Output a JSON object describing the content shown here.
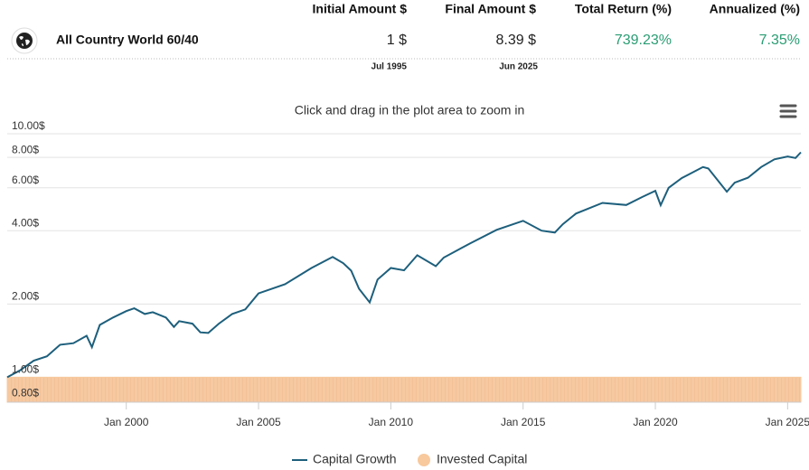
{
  "summary": {
    "headers": [
      "Initial Amount $",
      "Final Amount $",
      "Total Return (%)",
      "Annualized (%)"
    ],
    "portfolio": "All Country World 60/40",
    "initial_amount": "1 $",
    "final_amount": "8.39 $",
    "total_return": "739.23%",
    "annualized": "7.35%",
    "start_date": "Jul 1995",
    "end_date": "Jun 2025"
  },
  "chart_data": {
    "type": "line",
    "subtitle": "Click and drag in the plot area to zoom in",
    "log_scale": true,
    "grid": true,
    "legend": "bottom",
    "x": [
      1995.5,
      1996.0,
      1996.5,
      1997.0,
      1997.5,
      1998.0,
      1998.5,
      1998.7,
      1999.0,
      1999.5,
      2000.0,
      2000.3,
      2000.7,
      2001.0,
      2001.5,
      2001.8,
      2002.0,
      2002.5,
      2002.8,
      2003.1,
      2003.5,
      2004.0,
      2004.5,
      2005.0,
      2006.0,
      2007.0,
      2007.8,
      2008.2,
      2008.5,
      2008.8,
      2009.2,
      2009.5,
      2010.0,
      2010.5,
      2011.0,
      2011.7,
      2012.0,
      2013.0,
      2014.0,
      2015.0,
      2015.7,
      2016.2,
      2016.5,
      2017.0,
      2018.0,
      2018.9,
      2019.5,
      2020.0,
      2020.2,
      2020.5,
      2021.0,
      2021.8,
      2022.0,
      2022.7,
      2023.0,
      2023.5,
      2024.0,
      2024.5,
      2025.0,
      2025.3,
      2025.5
    ],
    "series": [
      {
        "name": "Capital Growth",
        "color": "#1d5f7c",
        "values": [
          1.0,
          1.07,
          1.17,
          1.22,
          1.36,
          1.38,
          1.48,
          1.33,
          1.64,
          1.76,
          1.87,
          1.92,
          1.82,
          1.85,
          1.76,
          1.61,
          1.7,
          1.66,
          1.53,
          1.52,
          1.66,
          1.82,
          1.9,
          2.21,
          2.41,
          2.81,
          3.12,
          2.94,
          2.74,
          2.31,
          2.03,
          2.52,
          2.81,
          2.75,
          3.17,
          2.86,
          3.1,
          3.55,
          4.03,
          4.39,
          4.0,
          3.93,
          4.25,
          4.7,
          5.2,
          5.1,
          5.5,
          5.83,
          5.09,
          6.0,
          6.58,
          7.3,
          7.2,
          5.78,
          6.3,
          6.6,
          7.3,
          7.85,
          8.07,
          7.95,
          8.39
        ]
      },
      {
        "name": "Invested Capital",
        "color": "#f8c99d",
        "values": [
          1,
          1,
          1,
          1,
          1,
          1,
          1,
          1,
          1,
          1,
          1,
          1,
          1,
          1,
          1,
          1,
          1,
          1,
          1,
          1,
          1,
          1,
          1,
          1,
          1,
          1,
          1,
          1,
          1,
          1,
          1,
          1,
          1,
          1,
          1,
          1,
          1,
          1,
          1,
          1,
          1,
          1,
          1,
          1,
          1,
          1,
          1,
          1,
          1,
          1,
          1,
          1,
          1,
          1,
          1,
          1,
          1,
          1,
          1,
          1,
          1
        ]
      }
    ],
    "xlim": [
      1995.5,
      2025.5
    ],
    "xticks": [
      {
        "value": 2000,
        "label": "Jan 2000"
      },
      {
        "value": 2005,
        "label": "Jan 2005"
      },
      {
        "value": 2010,
        "label": "Jan 2010"
      },
      {
        "value": 2015,
        "label": "Jan 2015"
      },
      {
        "value": 2020,
        "label": "Jan 2020"
      },
      {
        "value": 2025,
        "label": "Jan 2025"
      }
    ],
    "ylim": [
      0.79,
      10
    ],
    "yticks": [
      {
        "value": 0.8,
        "label": "0.80$"
      },
      {
        "value": 1,
        "label": "1.00$"
      },
      {
        "value": 2,
        "label": "2.00$"
      },
      {
        "value": 4,
        "label": "4.00$"
      },
      {
        "value": 6,
        "label": "6.00$"
      },
      {
        "value": 8,
        "label": "8.00$"
      },
      {
        "value": 10,
        "label": "10.00$"
      }
    ]
  }
}
